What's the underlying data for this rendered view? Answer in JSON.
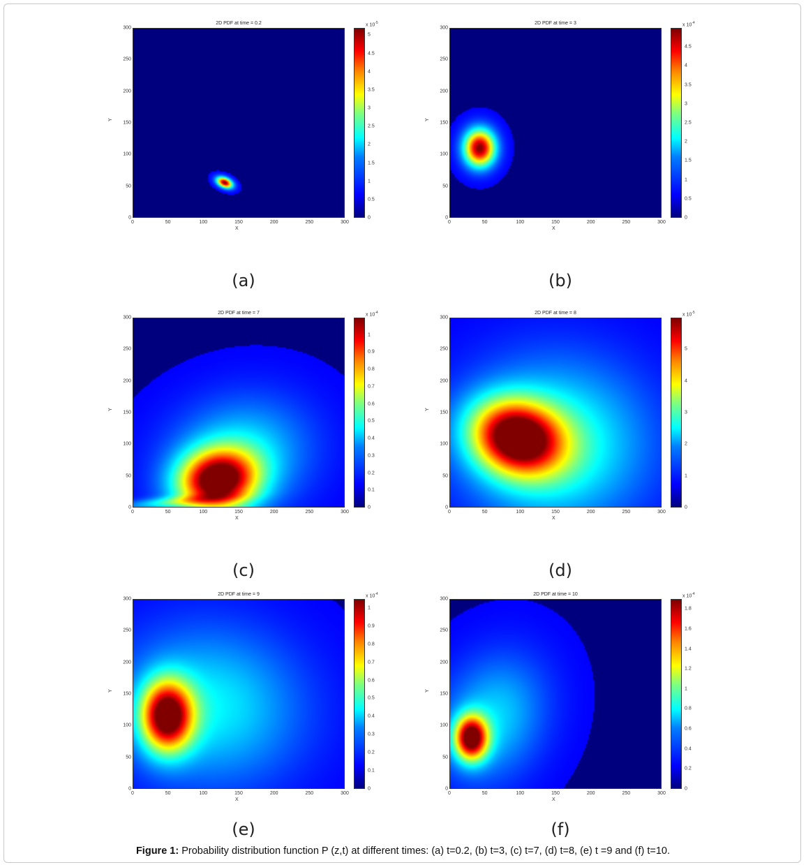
{
  "figure": {
    "caption_label": "Figure 1:",
    "caption_text": " Probability distribution function P (z,t) at different times: (a) t=0.2, (b) t=3, (c) t=7, (d) t=8, (e) t =9 and (f) t=10."
  },
  "colormap": "jet",
  "chart_data": [
    {
      "type": "heatmap",
      "panel_label": "(a)",
      "title": "2D PDF at time = 0.2",
      "xlabel": "X",
      "ylabel": "Y",
      "xlim": [
        0,
        300
      ],
      "ylim": [
        0,
        300
      ],
      "xticks": [
        "0",
        "50",
        "100",
        "150",
        "200",
        "250",
        "300"
      ],
      "yticks": [
        "0",
        "50",
        "100",
        "150",
        "200",
        "250",
        "300"
      ],
      "colorbar": {
        "exponent": "x 10",
        "power": "-5",
        "ticks": [
          "0",
          "0.5",
          "1",
          "1.5",
          "2",
          "2.5",
          "3",
          "3.5",
          "4",
          "4.5",
          "5"
        ],
        "max": 5.2
      },
      "peaks": [
        {
          "x": 130,
          "y": 55,
          "value": 5.2
        }
      ]
    },
    {
      "type": "heatmap",
      "panel_label": "(b)",
      "title": "2D PDF at time = 3",
      "xlabel": "X",
      "ylabel": "Y",
      "xlim": [
        0,
        300
      ],
      "ylim": [
        0,
        300
      ],
      "xticks": [
        "0",
        "50",
        "100",
        "150",
        "200",
        "250",
        "300"
      ],
      "yticks": [
        "0",
        "50",
        "100",
        "150",
        "200",
        "250",
        "300"
      ],
      "colorbar": {
        "exponent": "x 10",
        "power": "-4",
        "ticks": [
          "0",
          "0.5",
          "1",
          "1.5",
          "2",
          "2.5",
          "3",
          "3.5",
          "4",
          "4.5"
        ],
        "max": 5.0
      },
      "peaks": [
        {
          "x": 42,
          "y": 110,
          "value": 5.0
        }
      ]
    },
    {
      "type": "heatmap",
      "panel_label": "(c)",
      "title": "2D PDF at time = 7",
      "xlabel": "X",
      "ylabel": "Y",
      "xlim": [
        0,
        300
      ],
      "ylim": [
        0,
        300
      ],
      "xticks": [
        "0",
        "50",
        "100",
        "150",
        "200",
        "250",
        "300"
      ],
      "yticks": [
        "0",
        "50",
        "100",
        "150",
        "200",
        "250",
        "300"
      ],
      "colorbar": {
        "exponent": "x 10",
        "power": "-4",
        "ticks": [
          "0",
          "0.1",
          "0.2",
          "0.3",
          "0.4",
          "0.5",
          "0.6",
          "0.7",
          "0.8",
          "0.9",
          "1"
        ],
        "max": 1.1
      },
      "peaks": [
        {
          "x": 120,
          "y": 42,
          "value": 1.1
        }
      ]
    },
    {
      "type": "heatmap",
      "panel_label": "(d)",
      "title": "2D PDF at time = 8",
      "xlabel": "X",
      "ylabel": "Y",
      "xlim": [
        0,
        300
      ],
      "ylim": [
        0,
        300
      ],
      "xticks": [
        "0",
        "50",
        "100",
        "150",
        "200",
        "250",
        "300"
      ],
      "yticks": [
        "0",
        "50",
        "100",
        "150",
        "200",
        "250",
        "300"
      ],
      "colorbar": {
        "exponent": "x 10",
        "power": "-5",
        "ticks": [
          "0",
          "1",
          "2",
          "3",
          "4",
          "5"
        ],
        "max": 6.0
      },
      "peaks": [
        {
          "x": 95,
          "y": 110,
          "value": 6.0
        }
      ]
    },
    {
      "type": "heatmap",
      "panel_label": "(e)",
      "title": "2D PDF at time = 9",
      "xlabel": "X",
      "ylabel": "Y",
      "xlim": [
        0,
        300
      ],
      "ylim": [
        0,
        300
      ],
      "xticks": [
        "0",
        "50",
        "100",
        "150",
        "200",
        "250",
        "300"
      ],
      "yticks": [
        "0",
        "50",
        "100",
        "150",
        "200",
        "250",
        "300"
      ],
      "colorbar": {
        "exponent": "x 10",
        "power": "-4",
        "ticks": [
          "0",
          "0.1",
          "0.2",
          "0.3",
          "0.4",
          "0.5",
          "0.6",
          "0.7",
          "0.8",
          "0.9",
          "1"
        ],
        "max": 1.05
      },
      "peaks": [
        {
          "x": 48,
          "y": 115,
          "value": 1.05
        }
      ]
    },
    {
      "type": "heatmap",
      "panel_label": "(f)",
      "title": "2D PDF at time = 10",
      "xlabel": "X",
      "ylabel": "Y",
      "xlim": [
        0,
        300
      ],
      "ylim": [
        0,
        300
      ],
      "xticks": [
        "0",
        "50",
        "100",
        "150",
        "200",
        "250",
        "300"
      ],
      "yticks": [
        "0",
        "50",
        "100",
        "150",
        "200",
        "250",
        "300"
      ],
      "colorbar": {
        "exponent": "x 10",
        "power": "-4",
        "ticks": [
          "0",
          "0.2",
          "0.4",
          "0.6",
          "0.8",
          "1",
          "1.2",
          "1.4",
          "1.6",
          "1.8"
        ],
        "max": 1.9
      },
      "peaks": [
        {
          "x": 30,
          "y": 80,
          "value": 1.9
        }
      ]
    }
  ]
}
